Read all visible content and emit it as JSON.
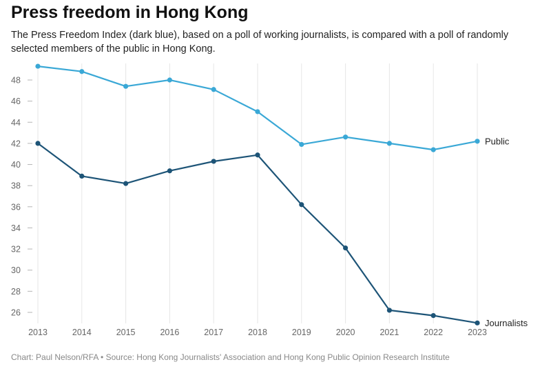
{
  "header": {
    "title": "Press freedom in Hong Kong",
    "subtitle": "The Press Freedom Index (dark blue), based on a poll of working journalists, is compared with a poll of randomly selected members of the public in Hong Kong."
  },
  "footer": {
    "source": "Chart: Paul Nelson/RFA • Source: Hong Kong Journalists' Association and Hong Kong Public Opinion Research Institute"
  },
  "chart_data": {
    "type": "line",
    "title": "Press freedom in Hong Kong",
    "xlabel": "",
    "ylabel": "",
    "x": [
      2013,
      2014,
      2015,
      2016,
      2017,
      2018,
      2019,
      2020,
      2021,
      2022,
      2023
    ],
    "xlim": [
      2013,
      2023
    ],
    "ylim": [
      25,
      49.5
    ],
    "yticks": [
      26,
      28,
      30,
      32,
      34,
      36,
      38,
      40,
      42,
      44,
      46,
      48
    ],
    "grid": "vertical",
    "legend": "direct labels at line ends",
    "series": [
      {
        "name": "Public",
        "color": "#3aa8d6",
        "values": [
          49.3,
          48.8,
          47.4,
          48.0,
          47.1,
          45.0,
          41.9,
          42.6,
          42.0,
          41.4,
          42.2
        ]
      },
      {
        "name": "Journalists",
        "color": "#1d5477",
        "values": [
          42.0,
          38.9,
          38.2,
          39.4,
          40.3,
          40.9,
          36.2,
          32.1,
          26.2,
          25.7,
          25.0
        ]
      }
    ]
  }
}
